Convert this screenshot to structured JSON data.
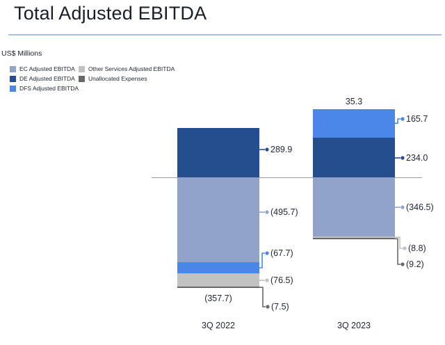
{
  "header": {
    "title": "Total Adjusted EBITDA",
    "units_label": "US$ Millions",
    "rule_color": "#a9c0e2",
    "text_color": "#1a1e2b"
  },
  "chart_data": {
    "type": "bar",
    "variant": "stacked-diverging-column",
    "title": "Total Adjusted EBITDA",
    "units": "US$ Millions",
    "categories": [
      "3Q 2022",
      "3Q 2023"
    ],
    "series": [
      {
        "name": "EC Adjusted EBITDA",
        "color": "#91a3c9",
        "values": [
          -495.7,
          -346.5
        ],
        "labels": [
          "(495.7)",
          "(346.5)"
        ]
      },
      {
        "name": "DE Adjusted EBITDA",
        "color": "#254e8e",
        "values": [
          289.9,
          234.0
        ],
        "labels": [
          "289.9",
          "234.0"
        ]
      },
      {
        "name": "DFS Adjusted EBITDA",
        "color": "#4a87e9",
        "values": [
          -67.7,
          165.7
        ],
        "labels": [
          "(67.7)",
          "165.7"
        ]
      },
      {
        "name": "Other Services Adjusted EBITDA",
        "color": "#c2c2c2",
        "values": [
          -76.5,
          -8.8
        ],
        "labels": [
          "(76.5)",
          "(8.8)"
        ]
      },
      {
        "name": "Unallocated Expenses",
        "color": "#686868",
        "values": [
          -7.5,
          -9.2
        ],
        "labels": [
          "(7.5)",
          "(9.2)"
        ]
      }
    ],
    "totals": {
      "values": [
        -357.7,
        35.3
      ],
      "labels": [
        "(357.7)",
        "35.3"
      ]
    },
    "axis": {
      "zero_line": true,
      "line_color": "#9a9a9a"
    },
    "legend_position": "top-left",
    "grid": false,
    "label_text_color": "#1e2433"
  }
}
